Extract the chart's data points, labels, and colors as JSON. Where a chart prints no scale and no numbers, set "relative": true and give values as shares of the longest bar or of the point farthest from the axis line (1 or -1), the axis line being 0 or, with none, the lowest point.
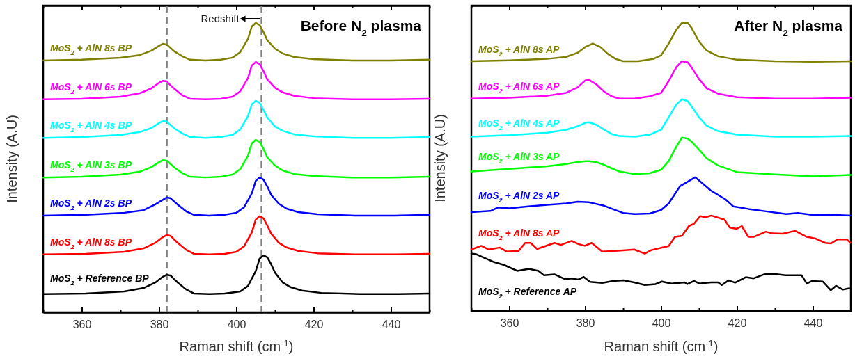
{
  "chart_data": [
    {
      "type": "line",
      "relative": true,
      "title": "Before N$_{2}$ plasma",
      "xlabel": "Raman shift (cm$^{-1}$)",
      "ylabel": "Intensity (A.U)",
      "xlim": [
        350,
        450
      ],
      "xticks": [
        {
          "value": 350,
          "label": null
        },
        360,
        {
          "value": 370,
          "label": null
        },
        380,
        {
          "value": 390,
          "label": null
        },
        400,
        {
          "value": 410,
          "label": null
        },
        420,
        {
          "value": 430,
          "label": null
        },
        440,
        {
          "value": 450,
          "label": null
        }
      ],
      "grid": false,
      "marker": "none",
      "line_style": "solid",
      "ref_lines": [
        {
          "axis": "x",
          "value": 382,
          "color": "#808080",
          "line_style": "dashed"
        },
        {
          "axis": "x",
          "value": 406.5,
          "color": "#808080",
          "line_style": "dashed"
        }
      ],
      "annotations": [
        "Redshift"
      ],
      "x": [
        350,
        360,
        370,
        375,
        378,
        380,
        381,
        382,
        383,
        384,
        386,
        388,
        392,
        396,
        399,
        401,
        403,
        404,
        405,
        406,
        407,
        408,
        410,
        412,
        415,
        420,
        430,
        440,
        450
      ],
      "series": [
        {
          "name": "MoS$_{2}$ + AlN 8s BP",
          "color": "#808000",
          "values": [
            0.87,
            0.873,
            0.88,
            0.889,
            0.904,
            0.921,
            0.928,
            0.925,
            0.913,
            0.901,
            0.885,
            0.873,
            0.87,
            0.873,
            0.88,
            0.899,
            0.945,
            0.988,
            1,
            0.993,
            0.969,
            0.94,
            0.911,
            0.894,
            0.882,
            0.875,
            0.87,
            0.87,
            0.873
          ]
        },
        {
          "name": "MoS$_{2}$ + AlN 6s BP",
          "color": "#ff00ff",
          "values": [
            0.736,
            0.738,
            0.745,
            0.757,
            0.774,
            0.793,
            0.8,
            0.798,
            0.784,
            0.772,
            0.75,
            0.738,
            0.736,
            0.738,
            0.745,
            0.764,
            0.81,
            0.853,
            0.865,
            0.858,
            0.834,
            0.805,
            0.776,
            0.76,
            0.748,
            0.74,
            0.736,
            0.736,
            0.738
          ]
        },
        {
          "name": "MoS$_{2}$ + AlN 4s BP",
          "color": "#00ffff",
          "values": [
            0.603,
            0.606,
            0.613,
            0.623,
            0.637,
            0.654,
            0.661,
            0.659,
            0.647,
            0.635,
            0.618,
            0.606,
            0.603,
            0.606,
            0.613,
            0.632,
            0.678,
            0.719,
            0.731,
            0.724,
            0.7,
            0.673,
            0.642,
            0.627,
            0.615,
            0.608,
            0.603,
            0.603,
            0.606
          ]
        },
        {
          "name": "MoS$_{2}$ + AlN 3s BP",
          "color": "#00ff00",
          "values": [
            0.466,
            0.469,
            0.476,
            0.486,
            0.502,
            0.519,
            0.526,
            0.524,
            0.512,
            0.5,
            0.481,
            0.469,
            0.466,
            0.469,
            0.476,
            0.495,
            0.541,
            0.584,
            0.596,
            0.589,
            0.565,
            0.536,
            0.507,
            0.49,
            0.478,
            0.471,
            0.466,
            0.466,
            0.469
          ]
        },
        {
          "name": "MoS$_{2}$ + AlN 2s BP",
          "color": "#0000ff",
          "x": [
            350,
            361,
            371,
            376,
            379,
            381,
            382,
            383,
            384,
            385,
            387,
            389,
            393,
            397,
            400,
            402,
            404,
            405,
            406,
            407,
            408,
            409,
            411,
            413,
            416,
            421,
            431,
            441,
            450
          ],
          "values": [
            0.334,
            0.337,
            0.344,
            0.353,
            0.373,
            0.389,
            0.397,
            0.394,
            0.382,
            0.37,
            0.349,
            0.337,
            0.334,
            0.337,
            0.344,
            0.363,
            0.411,
            0.454,
            0.466,
            0.459,
            0.435,
            0.406,
            0.375,
            0.358,
            0.346,
            0.339,
            0.334,
            0.334,
            0.337
          ]
        },
        {
          "name": "MoS$_{2}$ + AlN 8s BP",
          "color": "#ff0000",
          "x": [
            350,
            361,
            371,
            376,
            379,
            381,
            382,
            383,
            384,
            385,
            387,
            389,
            393,
            397,
            400,
            402,
            404,
            405,
            406,
            407,
            408,
            409,
            411,
            413,
            416,
            421,
            431,
            441,
            450
          ],
          "values": [
            0.2,
            0.202,
            0.209,
            0.221,
            0.24,
            0.26,
            0.267,
            0.264,
            0.25,
            0.238,
            0.216,
            0.202,
            0.2,
            0.202,
            0.209,
            0.228,
            0.276,
            0.32,
            0.332,
            0.325,
            0.3,
            0.272,
            0.24,
            0.224,
            0.212,
            0.204,
            0.2,
            0.2,
            0.202
          ]
        },
        {
          "name": "MoS$_{2}$ + Reference BP",
          "color": "#000000",
          "x": [
            350,
            361,
            371,
            376,
            379,
            381,
            382,
            383,
            384,
            385,
            387,
            389,
            393,
            397,
            401,
            403,
            405,
            406,
            407,
            408,
            409,
            410,
            412,
            414,
            417,
            422,
            432,
            442,
            450
          ],
          "values": [
            0.063,
            0.065,
            0.072,
            0.084,
            0.103,
            0.123,
            0.13,
            0.127,
            0.113,
            0.101,
            0.079,
            0.065,
            0.063,
            0.065,
            0.072,
            0.091,
            0.142,
            0.185,
            0.197,
            0.19,
            0.166,
            0.137,
            0.103,
            0.087,
            0.075,
            0.067,
            0.063,
            0.063,
            0.065
          ]
        }
      ]
    },
    {
      "type": "line",
      "relative": true,
      "title": "After N$_{2}$ plasma",
      "xlabel": "Raman shift (cm$^{-1}$)",
      "ylabel": "Intensity (A.U)",
      "xlim": [
        350,
        450
      ],
      "xticks": [
        {
          "value": 350,
          "label": null
        },
        360,
        {
          "value": 370,
          "label": null
        },
        380,
        {
          "value": 390,
          "label": null
        },
        400,
        {
          "value": 410,
          "label": null
        },
        420,
        {
          "value": 430,
          "label": null
        },
        440,
        {
          "value": 450,
          "label": null
        }
      ],
      "grid": false,
      "marker": "none",
      "line_style": "solid",
      "x": [
        350,
        360,
        370,
        375,
        378,
        380,
        381,
        383,
        385,
        387,
        389,
        393,
        397,
        400,
        402,
        404,
        405.5,
        407,
        408,
        410,
        412,
        415,
        420,
        430,
        440,
        450
      ],
      "series": [
        {
          "name": "MoS$_{2}$ + AlN 8s AP",
          "color": "#808000",
          "x": [
            350,
            360,
            370,
            375,
            378,
            380,
            382,
            384,
            386,
            388,
            390,
            394,
            398,
            400,
            402,
            404,
            405.5,
            407,
            408,
            410,
            412,
            415,
            420,
            430,
            440,
            450
          ],
          "values": [
            0.867,
            0.87,
            0.875,
            0.882,
            0.896,
            0.916,
            0.928,
            0.916,
            0.892,
            0.875,
            0.867,
            0.867,
            0.875,
            0.887,
            0.928,
            0.976,
            1,
            1,
            0.983,
            0.935,
            0.904,
            0.884,
            0.872,
            0.867,
            0.865,
            0.867
          ]
        },
        {
          "name": "MoS$_{2}$ + AlN 6s AP",
          "color": "#ff00ff",
          "values": [
            0.737,
            0.74,
            0.747,
            0.757,
            0.776,
            0.8,
            0.802,
            0.786,
            0.761,
            0.745,
            0.737,
            0.737,
            0.745,
            0.757,
            0.798,
            0.846,
            0.867,
            0.863,
            0.846,
            0.805,
            0.773,
            0.754,
            0.742,
            0.737,
            0.737,
            0.74
          ]
        },
        {
          "name": "MoS$_{2}$ + AlN 4s AP",
          "color": "#00ffff",
          "values": [
            0.605,
            0.61,
            0.619,
            0.629,
            0.641,
            0.653,
            0.655,
            0.646,
            0.629,
            0.614,
            0.607,
            0.605,
            0.612,
            0.629,
            0.672,
            0.716,
            0.735,
            0.728,
            0.711,
            0.672,
            0.643,
            0.624,
            0.612,
            0.605,
            0.605,
            0.607
          ]
        },
        {
          "name": "MoS$_{2}$ + AlN 3s AP",
          "color": "#00ff00",
          "values": [
            0.484,
            0.493,
            0.502,
            0.51,
            0.517,
            0.52,
            0.52,
            0.516,
            0.507,
            0.495,
            0.484,
            0.475,
            0.478,
            0.49,
            0.52,
            0.57,
            0.602,
            0.598,
            0.588,
            0.56,
            0.53,
            0.505,
            0.482,
            0.474,
            0.467,
            0.472
          ]
        },
        {
          "name": "MoS$_{2}$ + AlN 2s AP",
          "color": "#0000ff",
          "x": [
            350,
            355,
            357,
            360,
            365,
            370,
            375,
            378,
            381,
            385,
            388,
            390,
            393,
            397,
            400,
            402,
            405,
            409,
            413,
            417,
            419,
            423,
            428,
            433,
            436,
            440,
            445,
            450
          ],
          "values": [
            0.343,
            0.347,
            0.359,
            0.356,
            0.363,
            0.368,
            0.373,
            0.379,
            0.377,
            0.365,
            0.35,
            0.34,
            0.336,
            0.338,
            0.35,
            0.373,
            0.433,
            0.464,
            0.419,
            0.387,
            0.363,
            0.354,
            0.345,
            0.336,
            0.34,
            0.333,
            0.334,
            0.331
          ]
        },
        {
          "name": "MoS$_{2}$ + AlN 8s AP",
          "color": "#ff0000",
          "x": [
            350,
            352.6,
            354.6,
            357.5,
            359.3,
            362.4,
            364.2,
            365.6,
            367.3,
            371.9,
            373.6,
            376.4,
            378.2,
            379.9,
            381.7,
            384.5,
            388.7,
            392.9,
            395.7,
            397.4,
            402,
            403.7,
            405.5,
            407.3,
            408.7,
            410.3,
            411.8,
            413.2,
            416.7,
            418.1,
            419.9,
            421.3,
            423,
            424.4,
            427.6,
            429.3,
            432.1,
            435.3,
            438.4,
            440.5,
            443.3,
            444.7,
            446.5,
            448.9,
            450
          ],
          "values": [
            0.213,
            0.226,
            0.213,
            0.22,
            0.206,
            0.208,
            0.236,
            0.236,
            0.215,
            0.236,
            0.229,
            0.243,
            0.232,
            0.226,
            0.236,
            0.206,
            0.209,
            0.213,
            0.199,
            0.211,
            0.225,
            0.257,
            0.261,
            0.294,
            0.303,
            0.329,
            0.325,
            0.331,
            0.317,
            0.289,
            0.285,
            0.294,
            0.257,
            0.257,
            0.275,
            0.269,
            0.268,
            0.278,
            0.257,
            0.252,
            0.236,
            0.234,
            0.248,
            0.248,
            0.236
          ]
        },
        {
          "name": "MoS$_{2}$ + Reference AP",
          "color": "#000000",
          "x": [
            350,
            351.2,
            353.6,
            355.7,
            358.5,
            362.1,
            365.2,
            367.7,
            369.1,
            371.9,
            374.7,
            376.4,
            378.2,
            379.6,
            381.3,
            384.5,
            387.3,
            390.1,
            392.9,
            395.7,
            398.5,
            400.2,
            402.7,
            406.2,
            406.9,
            408.7,
            410.1,
            413.2,
            415,
            416,
            417.8,
            419.5,
            422.3,
            424.4,
            427.2,
            429.3,
            432.8,
            437,
            438.4,
            439.8,
            442.6,
            444.7,
            446.1,
            447.9,
            449.3,
            450
          ],
          "values": [
            0.199,
            0.197,
            0.183,
            0.171,
            0.16,
            0.139,
            0.146,
            0.139,
            0.124,
            0.127,
            0.11,
            0.113,
            0.109,
            0.118,
            0.101,
            0.097,
            0.104,
            0.106,
            0.099,
            0.09,
            0.093,
            0.102,
            0.095,
            0.099,
            0.093,
            0.104,
            0.095,
            0.099,
            0.099,
            0.09,
            0.106,
            0.098,
            0.117,
            0.113,
            0.127,
            0.129,
            0.124,
            0.124,
            0.095,
            0.104,
            0.102,
            0.072,
            0.087,
            0.074,
            0.078,
            0.078
          ]
        }
      ]
    }
  ]
}
